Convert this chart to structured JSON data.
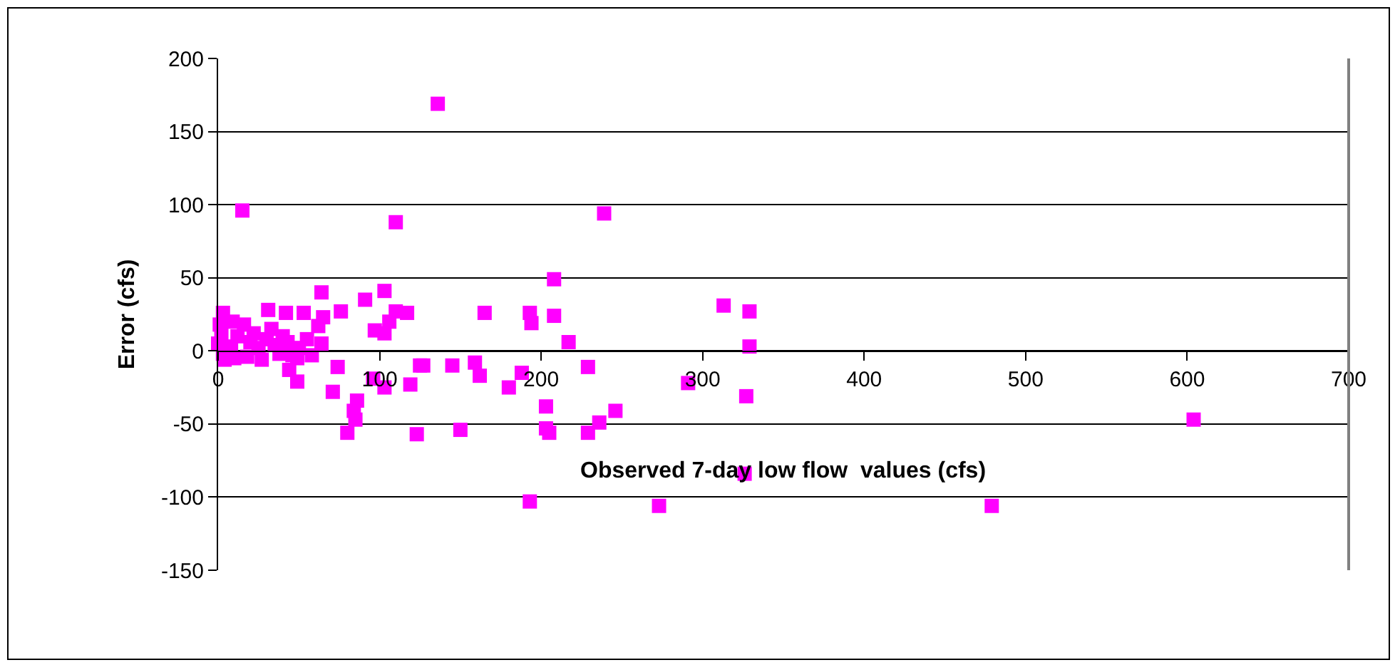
{
  "chart_data": {
    "type": "scatter",
    "xlabel": "Observed 7-day low flow  values (cfs)",
    "ylabel": "Error (cfs)",
    "xlim": [
      0,
      700
    ],
    "xticks": [
      0,
      100,
      200,
      300,
      400,
      500,
      600,
      700
    ],
    "ylim": [
      -150,
      200
    ],
    "yticks": [
      -150,
      -100,
      -50,
      0,
      50,
      100,
      150,
      200
    ],
    "grid": "y",
    "marker": "square",
    "series": [
      {
        "color": "#ff00ff",
        "x": [
          136,
          15,
          110,
          239,
          208,
          64,
          103,
          91,
          76,
          65,
          42,
          53,
          31,
          3,
          110,
          117,
          106,
          97,
          103,
          62,
          64,
          125,
          74,
          49,
          44,
          49,
          71,
          96,
          103,
          119,
          86,
          84,
          85,
          80,
          123,
          0,
          2,
          3,
          8,
          10,
          12,
          16,
          18,
          20,
          22,
          25,
          27,
          30,
          33,
          35,
          38,
          40,
          43,
          46,
          50,
          55,
          58,
          1,
          4,
          9,
          165,
          193,
          194,
          208,
          217,
          313,
          329,
          329,
          127,
          145,
          159,
          162,
          188,
          229,
          180,
          291,
          327,
          203,
          246,
          236,
          203,
          205,
          229,
          150,
          604,
          326,
          273,
          479,
          193
        ],
        "values": [
          169,
          96,
          88,
          94,
          49,
          40,
          41,
          35,
          27,
          23,
          26,
          26,
          28,
          26,
          27,
          26,
          20,
          14,
          12,
          17,
          5,
          -10,
          -11,
          -5,
          -13,
          -21,
          -28,
          -19,
          -25,
          -23,
          -34,
          -41,
          -47,
          -56,
          -57,
          5,
          12,
          -2,
          3,
          -5,
          10,
          18,
          -4,
          6,
          12,
          2,
          -6,
          8,
          15,
          4,
          -2,
          10,
          6,
          -3,
          2,
          8,
          -3,
          18,
          -6,
          20,
          26,
          26,
          19,
          24,
          6,
          31,
          27,
          3,
          -10,
          -10,
          -8,
          -17,
          -15,
          -11,
          -25,
          -22,
          -31,
          -38,
          -41,
          -49,
          -53,
          -56,
          -56,
          -54,
          -47,
          -84,
          -106,
          -106,
          -103
        ]
      }
    ]
  }
}
